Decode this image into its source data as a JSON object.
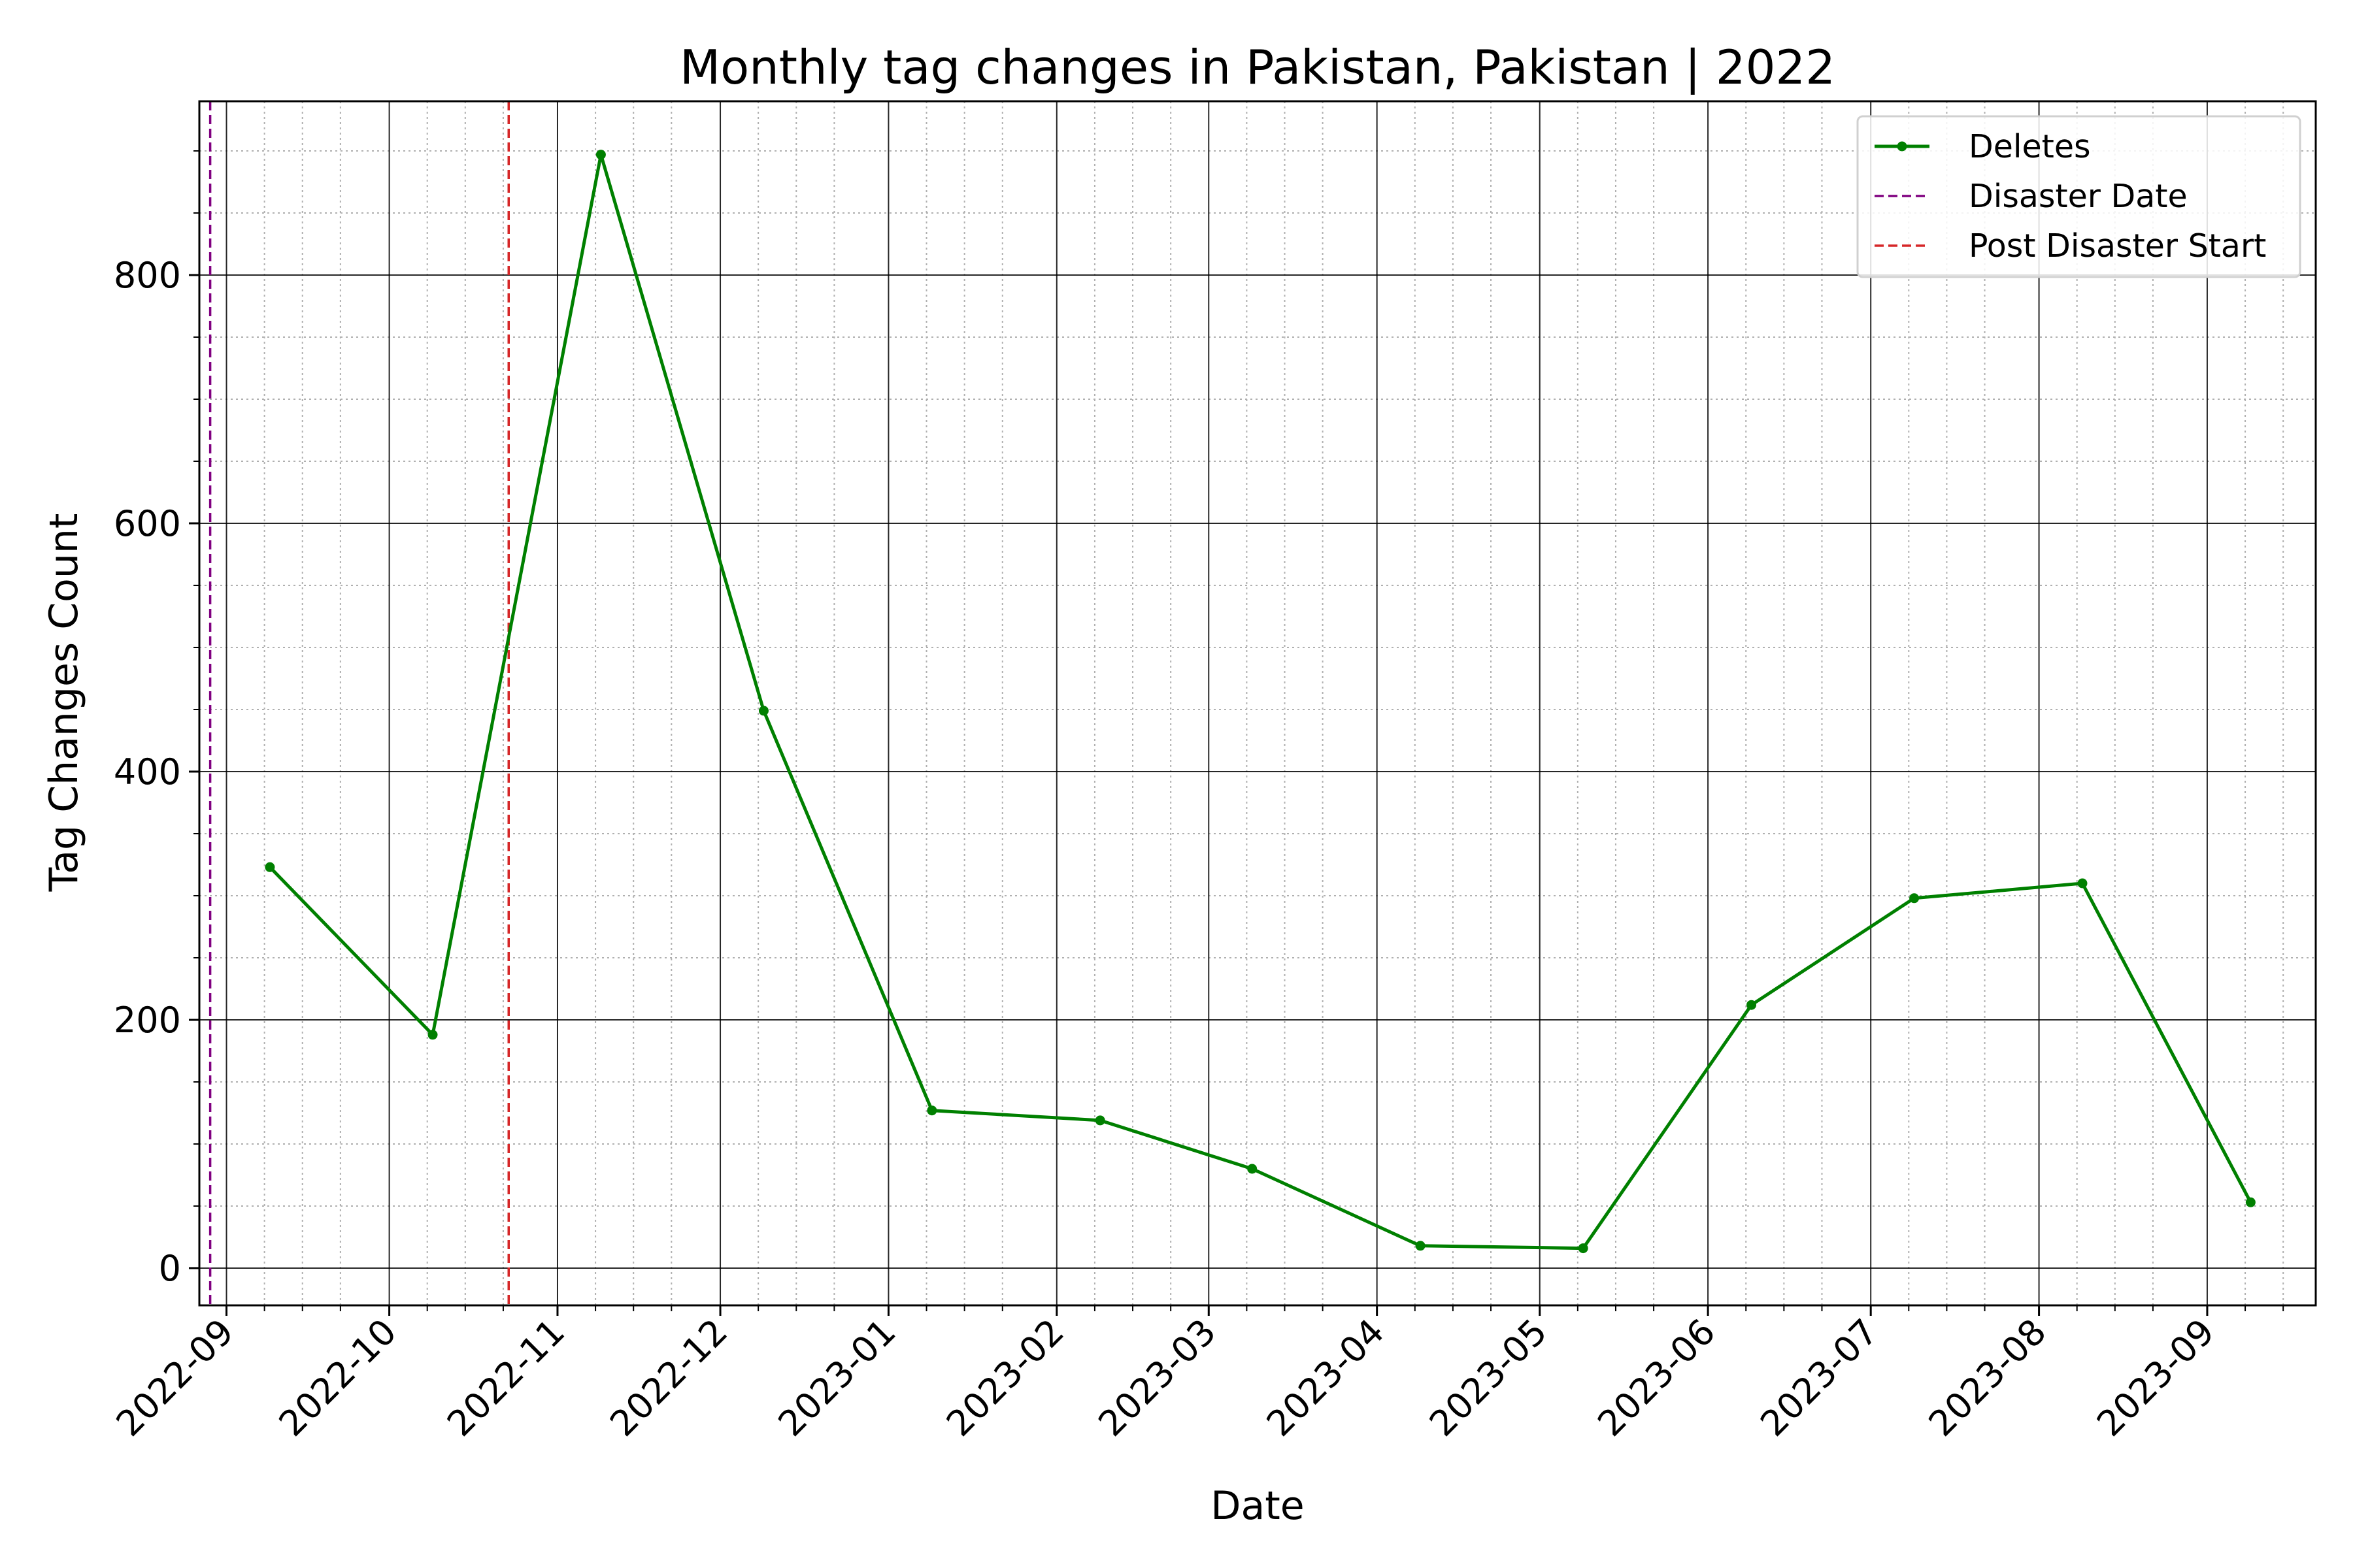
{
  "chart_data": {
    "type": "line",
    "title": "Monthly tag changes in Pakistan, Pakistan | 2022",
    "xlabel": "Date",
    "ylabel": "Tag Changes Count",
    "x_axis_type": "date",
    "xlim": [
      "2022-08-27",
      "2023-09-21"
    ],
    "ylim": [
      -30,
      940
    ],
    "x_ticks": [
      "2022-09-01",
      "2022-10-01",
      "2022-11-01",
      "2022-12-01",
      "2023-01-01",
      "2023-02-01",
      "2023-03-01",
      "2023-04-01",
      "2023-05-01",
      "2023-06-01",
      "2023-07-01",
      "2023-08-01",
      "2023-09-01"
    ],
    "x_tick_labels": [
      "2022-09",
      "2022-10",
      "2022-11",
      "2022-12",
      "2023-01",
      "2023-02",
      "2023-03",
      "2023-04",
      "2023-05",
      "2023-06",
      "2023-07",
      "2023-08",
      "2023-09"
    ],
    "y_ticks": [
      0,
      200,
      400,
      600,
      800
    ],
    "y_tick_labels": [
      "0",
      "200",
      "400",
      "600",
      "800"
    ],
    "grid": true,
    "minor_grid": true,
    "legend_position": "top-right",
    "series": [
      {
        "name": "Deletes",
        "color": "#008000",
        "marker": "circle",
        "x": [
          "2022-09-09",
          "2022-10-09",
          "2022-11-09",
          "2022-12-09",
          "2023-01-09",
          "2023-02-09",
          "2023-03-09",
          "2023-04-09",
          "2023-05-09",
          "2023-06-09",
          "2023-07-09",
          "2023-08-09",
          "2023-09-09"
        ],
        "y": [
          323,
          188,
          897,
          449,
          127,
          119,
          80,
          18,
          16,
          212,
          298,
          310,
          53
        ]
      }
    ],
    "vlines": [
      {
        "name": "Disaster Date",
        "x": "2022-08-29",
        "color": "#800080",
        "style": "dashed"
      },
      {
        "name": "Post Disaster Start",
        "x": "2022-10-23",
        "color": "#d62728",
        "style": "dashed"
      }
    ]
  }
}
